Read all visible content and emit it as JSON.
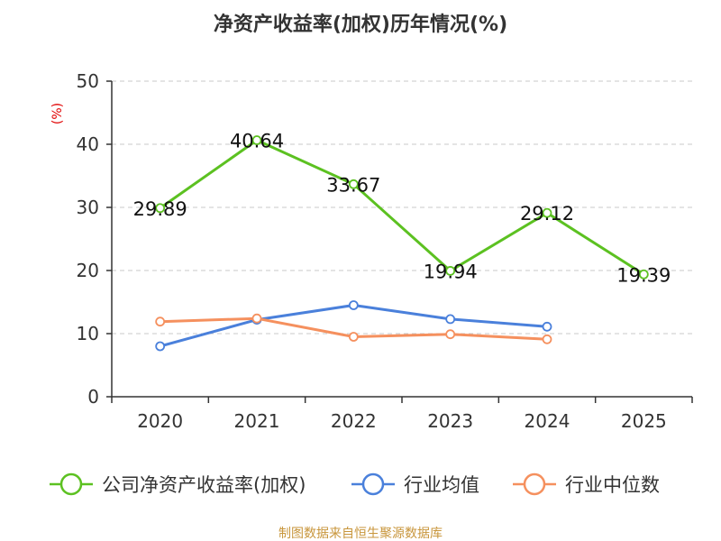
{
  "chart_data": {
    "type": "line",
    "title": "净资产收益率(加权)历年情况(%)",
    "ylabel": "(%)",
    "ylim": [
      0,
      50
    ],
    "yticks": [
      "0",
      "10",
      "20",
      "30",
      "40",
      "50"
    ],
    "categories": [
      "2020",
      "2021",
      "2022",
      "2023",
      "2024",
      "2025"
    ],
    "series": [
      {
        "name": "公司净资产收益率(加权)",
        "color": "#5cc121",
        "values": [
          29.89,
          40.64,
          33.67,
          19.94,
          29.12,
          19.39
        ],
        "labels": [
          "29.89",
          "40.64",
          "33.67",
          "19.94",
          "29.12",
          "19.39"
        ],
        "show_labels": true
      },
      {
        "name": "行业均值",
        "color": "#4a80db",
        "values": [
          8.0,
          12.2,
          14.5,
          12.3,
          11.1,
          null
        ],
        "show_labels": false
      },
      {
        "name": "行业中位数",
        "color": "#f5905e",
        "values": [
          11.9,
          12.4,
          9.5,
          9.9,
          9.1,
          null
        ],
        "show_labels": false
      }
    ],
    "grid": true,
    "legend_position": "bottom",
    "source": "制图数据来自恒生聚源数据库"
  }
}
